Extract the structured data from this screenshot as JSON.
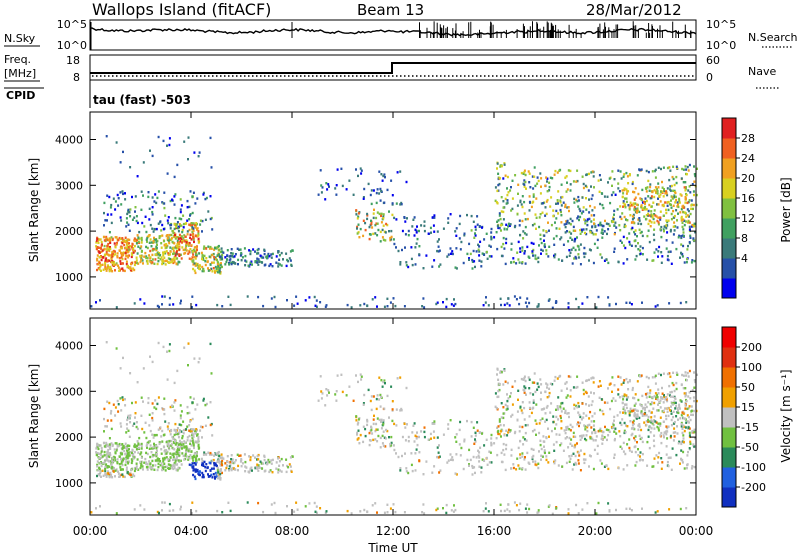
{
  "header": {
    "station": "Wallops Island (fitACF)",
    "beam": "Beam 13",
    "date": "28/Mar/2012"
  },
  "noise_panel": {
    "left_label": "N.Sky",
    "right_label": "N.Search",
    "left_ticks": [
      "10^5",
      "10^0"
    ],
    "right_ticks": [
      "10^5",
      "10^0"
    ]
  },
  "freq_panel": {
    "left_label_1": "Freq.",
    "left_label_2": "[MHz]",
    "left_ticks": [
      "18",
      "8"
    ],
    "right_label": "Nave",
    "right_ticks": [
      "60",
      "0"
    ],
    "cpid_label": "CPID",
    "cpid_text": "tau (fast) -503"
  },
  "chart_data": [
    {
      "type": "heatmap",
      "name": "power",
      "ylabel": "Slant Range [km]",
      "ylim": [
        300,
        4600
      ],
      "yticks": [
        "1000",
        "2000",
        "3000",
        "4000"
      ],
      "xlim": [
        0,
        24
      ],
      "colorbar": {
        "label": "Power [dB]",
        "ticks": [
          "28",
          "24",
          "20",
          "16",
          "12",
          "8",
          "4"
        ],
        "colors": [
          "#0000ee",
          "#2650a8",
          "#3a7a7a",
          "#40a060",
          "#80c040",
          "#d8d020",
          "#f0a020",
          "#f06020",
          "#e02020"
        ]
      }
    },
    {
      "type": "heatmap",
      "name": "velocity",
      "ylabel": "Slant Range [km]",
      "ylim": [
        300,
        4600
      ],
      "yticks": [
        "1000",
        "2000",
        "3000",
        "4000"
      ],
      "xlim": [
        0,
        24
      ],
      "xticks": [
        "00:00",
        "04:00",
        "08:00",
        "12:00",
        "16:00",
        "20:00",
        "00:00"
      ],
      "xlabel": "Time UT",
      "colorbar": {
        "label": "Velocity [m s⁻¹]",
        "ticks": [
          "200",
          "100",
          "50",
          "15",
          "-15",
          "-50",
          "-100",
          "-200"
        ],
        "colors": [
          "#1030c0",
          "#2060e0",
          "#2a8a5a",
          "#70c040",
          "#c0c0c0",
          "#f0a000",
          "#f07000",
          "#e03010",
          "#f00000"
        ]
      }
    }
  ]
}
